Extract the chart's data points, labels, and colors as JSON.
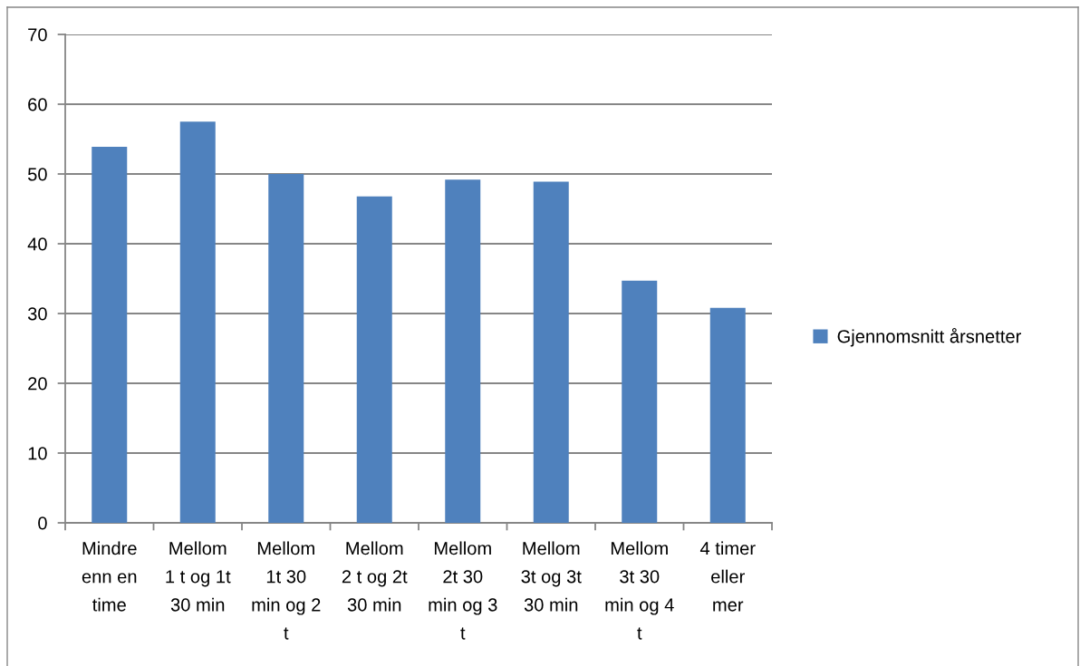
{
  "chart_data": {
    "type": "bar",
    "categories": [
      "Mindre enn en time",
      "Mellom 1 t og 1t 30 min",
      "Mellom 1t 30 min og 2 t",
      "Mellom 2 t og 2t 30 min",
      "Mellom 2t 30 min og 3 t",
      "Mellom 3t og 3t 30 min",
      "Mellom 3t 30 min og 4 t",
      "4 timer eller mer"
    ],
    "series": [
      {
        "name": "Gjennomsnitt årsnetter",
        "color": "#4f81bd",
        "values": [
          53.9,
          57.5,
          50.0,
          46.8,
          49.2,
          48.9,
          34.7,
          30.8
        ]
      }
    ],
    "ylim": [
      0,
      70
    ],
    "yticks": [
      0,
      10,
      20,
      30,
      40,
      50,
      60,
      70
    ],
    "grid": "y",
    "legend": "right"
  }
}
